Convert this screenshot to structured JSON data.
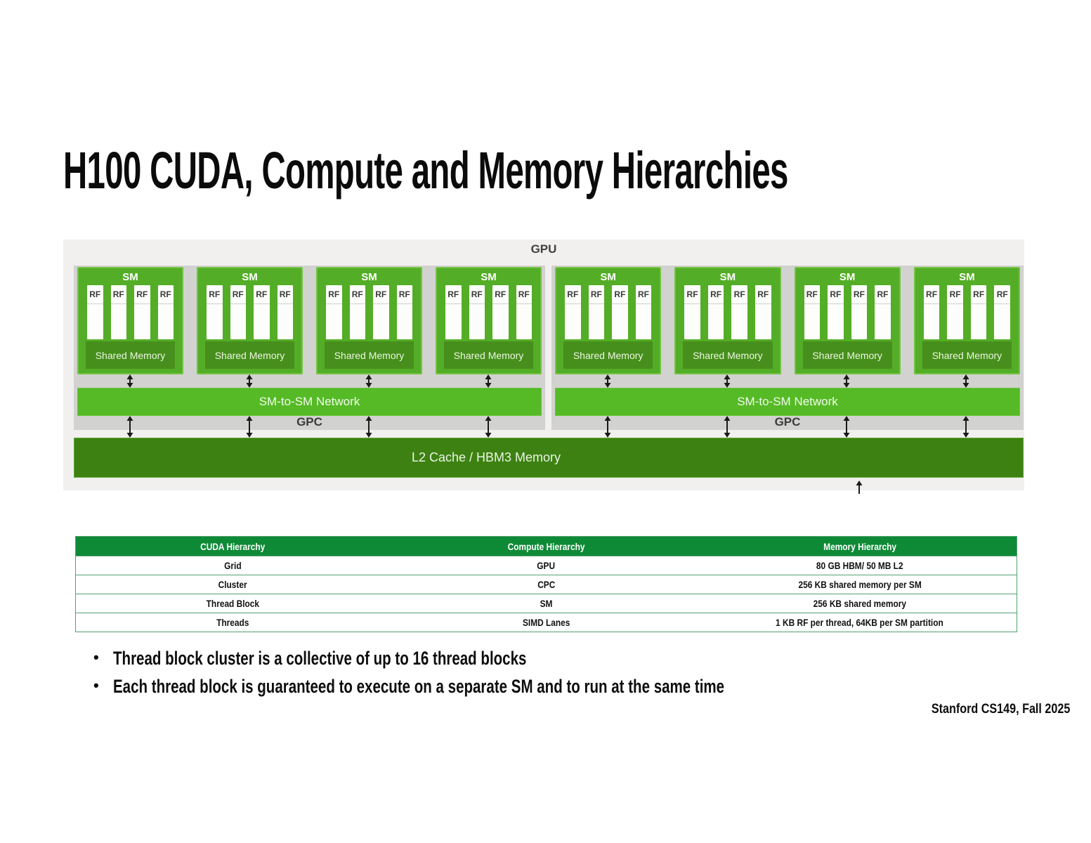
{
  "title": "H100 CUDA, Compute and Memory Hierarchies",
  "diagram": {
    "gpu_label": "GPU",
    "gpc_label": "GPC",
    "gpc_count": 2,
    "sms_per_gpc": 4,
    "rfs_per_sm": 4,
    "sm_label": "SM",
    "rf_label": "RF",
    "shared_memory_label": "Shared Memory",
    "network_label": "SM-to-SM Network",
    "l2_label": "L2 Cache / HBM3 Memory"
  },
  "table": {
    "headers": [
      "CUDA Hierarchy",
      "Compute Hierarchy",
      "Memory Hierarchy"
    ],
    "rows": [
      [
        "Grid",
        "GPU",
        "80 GB HBM/ 50 MB L2"
      ],
      [
        "Cluster",
        "CPC",
        "256 KB shared memory per SM"
      ],
      [
        "Thread Block",
        "SM",
        "256 KB shared memory"
      ],
      [
        "Threads",
        "SIMD Lanes",
        "1 KB RF per thread, 64KB  per SM partition"
      ]
    ]
  },
  "bullets": [
    "Thread block cluster is a collective of up to 16 thread blocks",
    "Each thread block is guaranteed to execute on a separate SM and to run at the same time"
  ],
  "footer": "Stanford CS149, Fall 2025",
  "colors": {
    "sm_green": "#54ad26",
    "shared_memory_green": "#478f1c",
    "network_green": "#55ba26",
    "l2_green": "#3d8113",
    "gpc_gray": "#d2d2d0",
    "panel_gray": "#f1f0ee",
    "table_header_green": "#0e8a36",
    "table_border_green": "#53a172",
    "arrow_black": "#1a1a1a"
  }
}
